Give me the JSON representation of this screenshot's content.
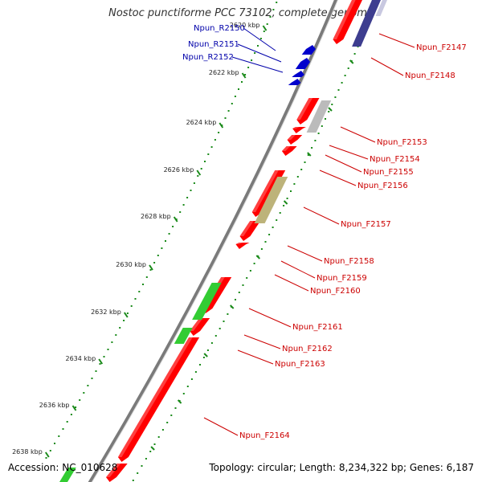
{
  "title": "Nostoc punctiforme PCC 73102, complete genome",
  "accession": "Accession: NC_010628",
  "topology": "Topology: circular; Length: 8,234,322 bp; Genes: 6,187",
  "colors": {
    "backbone": "#909090",
    "forward_gene": "#ff0000",
    "reverse_gene": "#0000cc",
    "label_forward": "#cc0000",
    "label_reverse": "#0000aa",
    "scale_dots": "#1a8a1a",
    "coding_green": "#33cc33",
    "coding_gray": "#bbbbbb",
    "coding_navy": "#3d3d8f",
    "coding_lavender": "#c8c8e0",
    "coding_olive": "#bdb37a"
  },
  "scale_ticks": [
    {
      "label": "2620 kbp"
    },
    {
      "label": "2622 kbp"
    },
    {
      "label": "2624 kbp"
    },
    {
      "label": "2626 kbp"
    },
    {
      "label": "2628 kbp"
    },
    {
      "label": "2630 kbp"
    },
    {
      "label": "2632 kbp"
    },
    {
      "label": "2634 kbp"
    },
    {
      "label": "2636 kbp"
    },
    {
      "label": "2638 kbp"
    }
  ],
  "reverse_genes": [
    {
      "label": "Npun_R2150"
    },
    {
      "label": "Npun_R2151"
    },
    {
      "label": "Npun_R2152"
    }
  ],
  "forward_genes": [
    {
      "label": "Npun_F2147"
    },
    {
      "label": "Npun_F2148"
    },
    {
      "label": "Npun_F2153"
    },
    {
      "label": "Npun_F2154"
    },
    {
      "label": "Npun_F2155"
    },
    {
      "label": "Npun_F2156"
    },
    {
      "label": "Npun_F2157"
    },
    {
      "label": "Npun_F2158"
    },
    {
      "label": "Npun_F2159"
    },
    {
      "label": "Npun_F2160"
    },
    {
      "label": "Npun_F2161"
    },
    {
      "label": "Npun_F2162"
    },
    {
      "label": "Npun_F2163"
    },
    {
      "label": "Npun_F2164"
    }
  ]
}
